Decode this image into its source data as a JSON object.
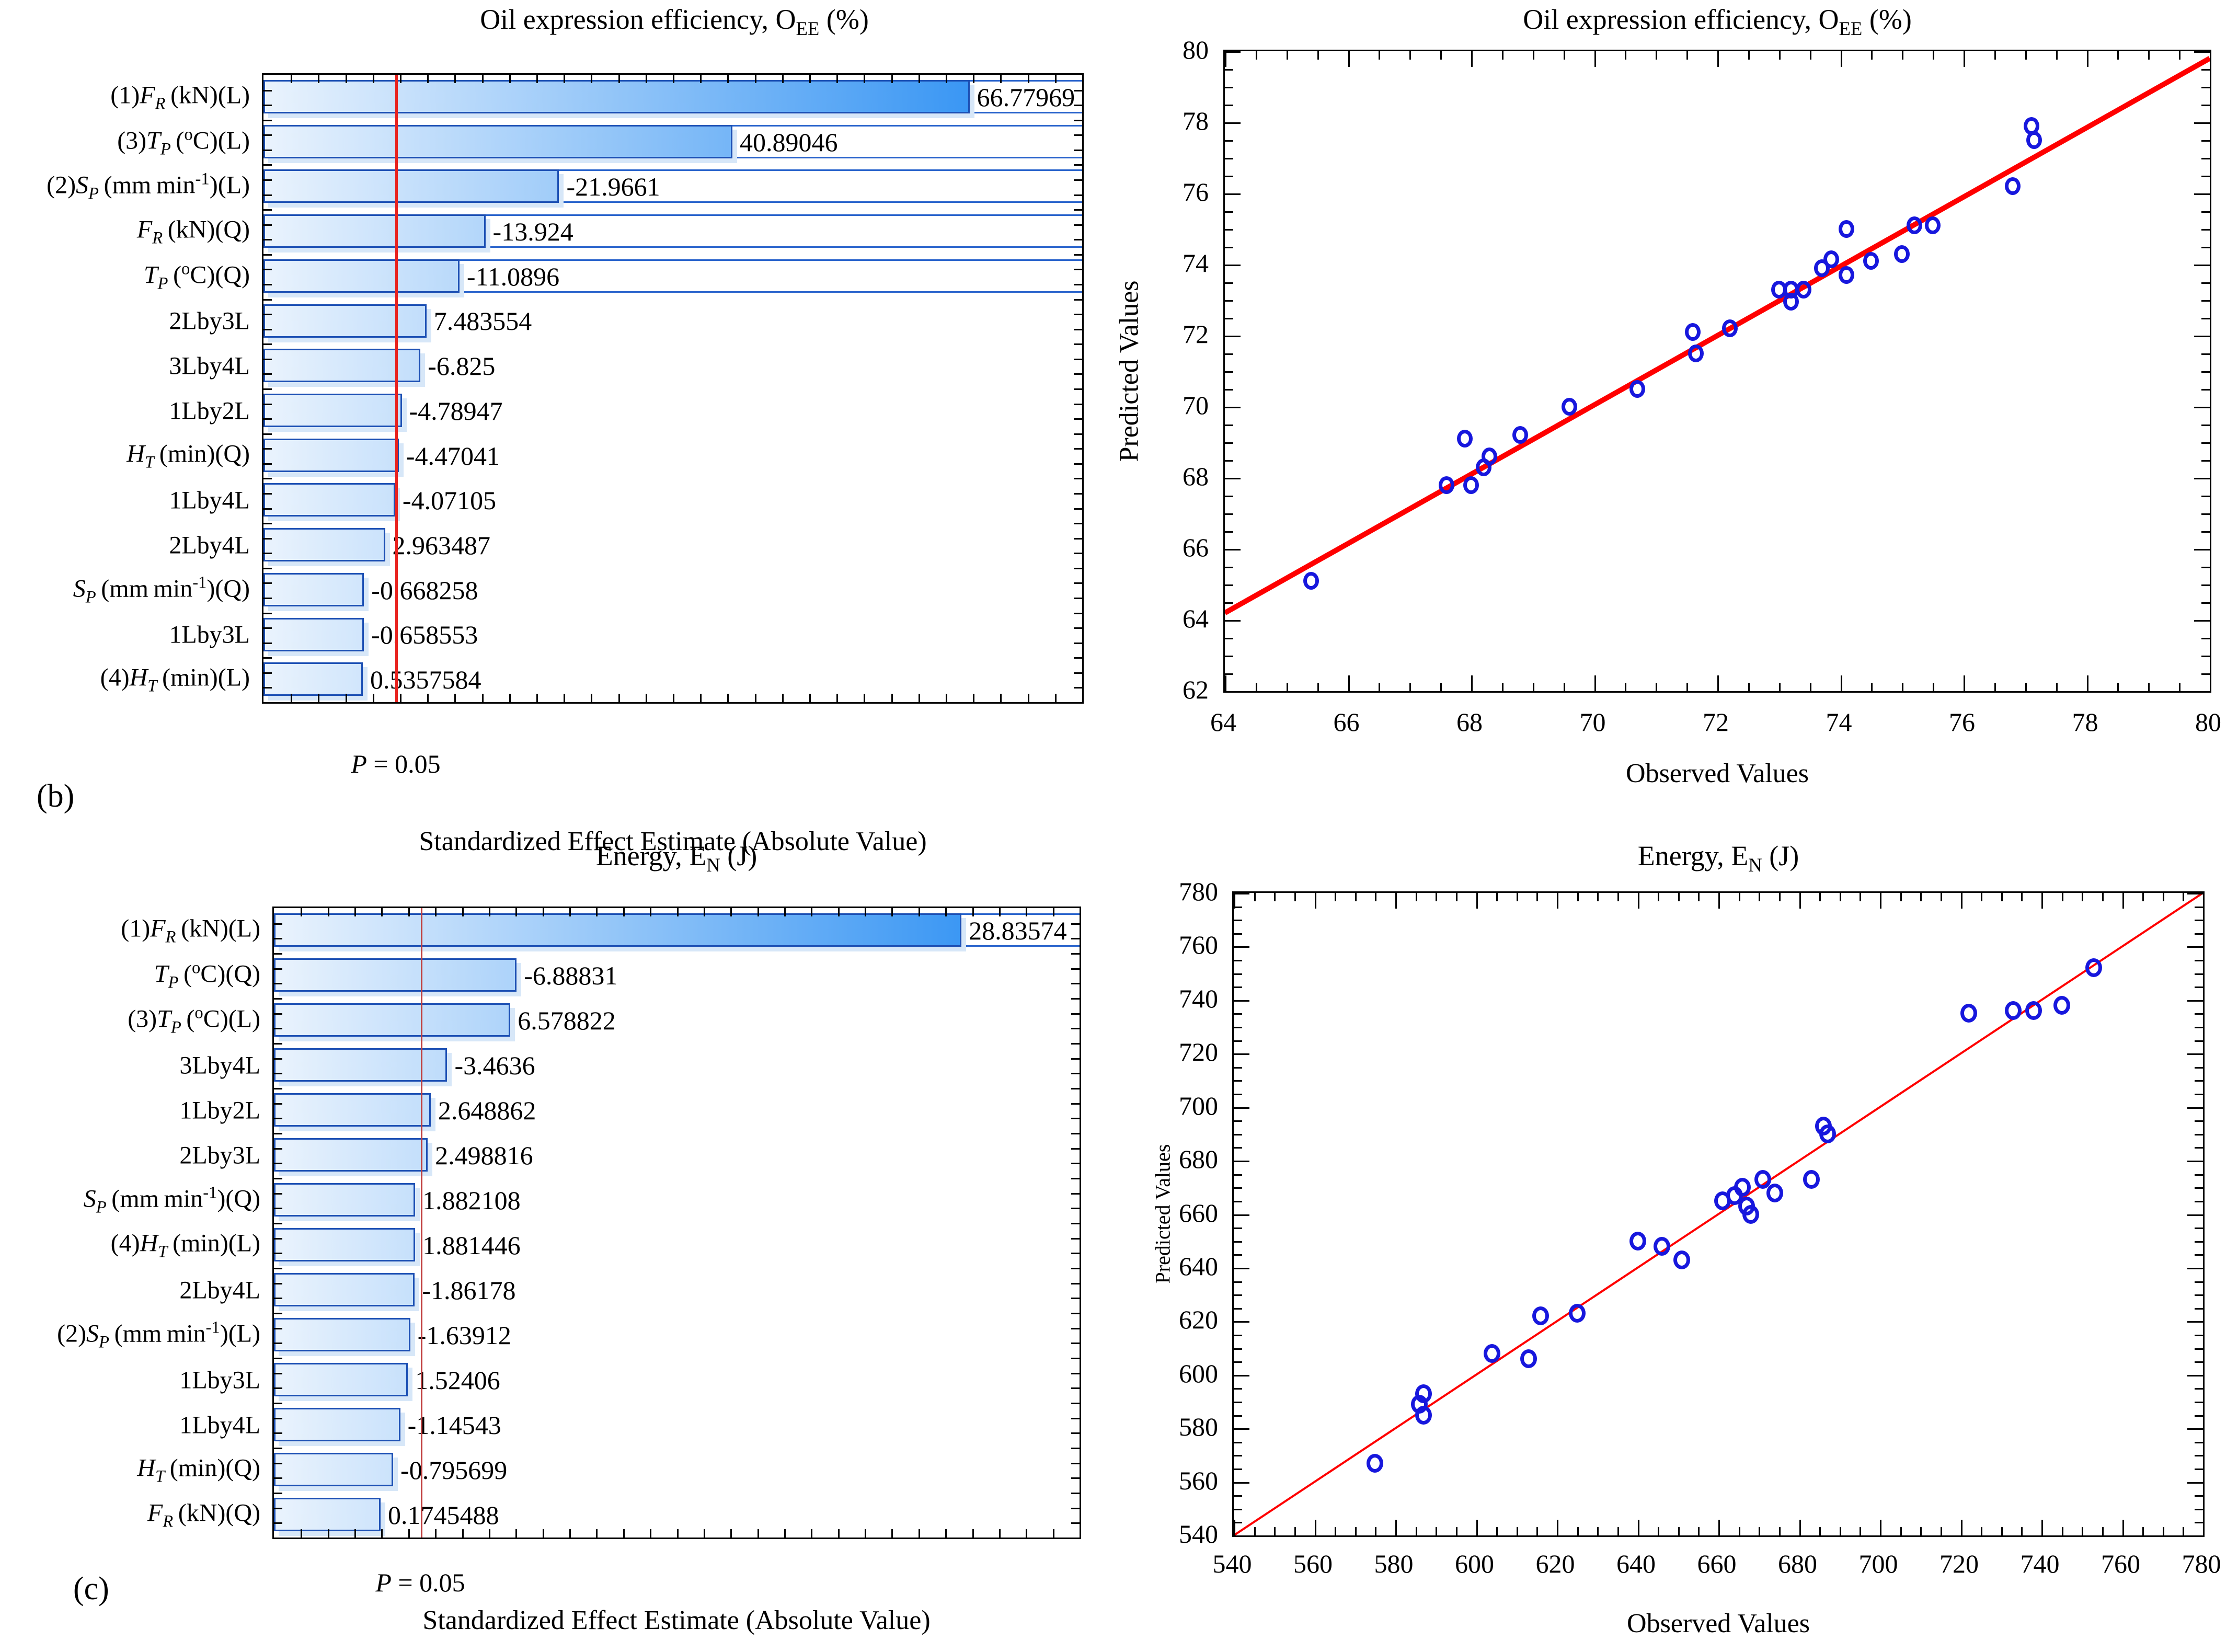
{
  "panels": {
    "b": "(b)",
    "c": "(c)"
  },
  "colors": {
    "bar_gradient_start": "#eaf3fd",
    "bar_gradient_end": "#1e88f2",
    "bar_border": "#1d50b4",
    "bar_shadow": "#d7e7f8",
    "row_line": "#2a64cc",
    "significance_line_b": "#e8231f",
    "significance_line_c": "#c04040",
    "fit_line": "#ff0000",
    "point_ring": "#1717dd"
  },
  "chart_data": [
    {
      "type": "bar",
      "panel": "b",
      "title_html": "Oil expression efficiency, O<sub>EE</sub> (%)",
      "xlabel": "Standardized Effect Estimate (Absolute Value)",
      "p_line_label_html": "<i>P</i> = 0.05",
      "p_line_value": 0.05,
      "categories_html": [
        "(1)<i>F<sub>R</sub></i>&thinsp;(kN)(L)",
        "(3)<i>T<sub>P</sub></i>&thinsp;(<sup>o</sup>C)(L)",
        "(2)<i>S<sub>P</sub></i>&thinsp;(mm&thinsp;min<sup>-1</sup>)(L)",
        "<i>F<sub>R</sub></i>&thinsp;(kN)(Q)",
        "<i>T<sub>P</sub></i>&thinsp;(<sup>o</sup>C)(Q)",
        "2Lby3L",
        "3Lby4L",
        "1Lby2L",
        "<i>H<sub>T</sub></i>&thinsp;(min)(Q)",
        "1Lby4L",
        "2Lby4L",
        "<i>S<sub>P</sub></i>&thinsp;(mm&thinsp;min<sup>-1</sup>)(Q)",
        "1Lby3L",
        "(4)<i>H<sub>T</sub></i>&thinsp;(min)(L)"
      ],
      "values": [
        66.77969,
        40.89046,
        -21.9661,
        -13.924,
        -11.0896,
        7.483554,
        -6.825,
        -4.78947,
        -4.47041,
        -4.07105,
        2.963487,
        -0.668258,
        -0.658553,
        0.5357584
      ],
      "value_labels": [
        "66.77969",
        "40.89046",
        "-21.9661",
        "-13.924",
        "-11.0896",
        "7.483554",
        "-6.825",
        "-4.78947",
        "-4.47041",
        "-4.07105",
        "2.963487",
        "-0.668258",
        "-0.658553",
        "0.5357584"
      ],
      "rows_with_full_lines": [
        0,
        1,
        2,
        3,
        4
      ]
    },
    {
      "type": "scatter",
      "panel": "b",
      "title_html": "Oil expression efficiency, O<sub>EE</sub> (%)",
      "xlabel": "Observed Values",
      "ylabel": "Predicted Values",
      "xlim": [
        64,
        80
      ],
      "ylim": [
        62,
        80
      ],
      "x_ticks": [
        64,
        66,
        68,
        70,
        72,
        74,
        76,
        78,
        80
      ],
      "y_ticks": [
        62,
        64,
        66,
        68,
        70,
        72,
        74,
        76,
        78,
        80
      ],
      "minor_step": 0.5,
      "grid": false,
      "points": [
        [
          65.4,
          65.1
        ],
        [
          67.6,
          67.8
        ],
        [
          67.9,
          69.1
        ],
        [
          68.0,
          67.8
        ],
        [
          68.2,
          68.3
        ],
        [
          68.3,
          68.6
        ],
        [
          68.8,
          69.2
        ],
        [
          69.6,
          70.0
        ],
        [
          70.7,
          70.5
        ],
        [
          71.6,
          72.1
        ],
        [
          71.65,
          71.5
        ],
        [
          72.2,
          72.2
        ],
        [
          73.0,
          73.3
        ],
        [
          73.2,
          73.3
        ],
        [
          73.2,
          72.95
        ],
        [
          73.4,
          73.3
        ],
        [
          73.7,
          73.9
        ],
        [
          73.85,
          74.15
        ],
        [
          74.1,
          75.0
        ],
        [
          74.1,
          73.7
        ],
        [
          74.5,
          74.1
        ],
        [
          75.0,
          74.3
        ],
        [
          75.2,
          75.1
        ],
        [
          75.5,
          75.1
        ],
        [
          76.8,
          76.2
        ],
        [
          77.1,
          77.9
        ],
        [
          77.15,
          77.5
        ]
      ],
      "fit_line": {
        "x1": 64,
        "y1": 64.2,
        "x2": 80,
        "y2": 79.8
      }
    },
    {
      "type": "bar",
      "panel": "c",
      "title_html": "Energy, E<sub>N</sub> (J)",
      "xlabel": "Standardized Effect Estimate (Absolute Value)",
      "p_line_label_html": "<i>P</i> = 0.05",
      "p_line_value": 0.05,
      "categories_html": [
        "(1)<i>F<sub>R</sub></i>&thinsp;(kN)(L)",
        "<i>T<sub>P</sub></i>&thinsp;(<sup>o</sup>C)(Q)",
        "(3)<i>T<sub>P</sub></i>&thinsp;(<sup>o</sup>C)(L)",
        "3Lby4L",
        "1Lby2L",
        "2Lby3L",
        "<i>S<sub>P</sub></i>&thinsp;(mm&thinsp;min<sup>-1</sup>)(Q)",
        "(4)<i>H<sub>T</sub></i>&thinsp;(min)(L)",
        "2Lby4L",
        "(2)<i>S<sub>P</sub></i>&thinsp;(mm&thinsp;min<sup>-1</sup>)(L)",
        "1Lby3L",
        "1Lby4L",
        "<i>H<sub>T</sub></i>&thinsp;(min)(Q)",
        "<i>F<sub>R</sub></i>&thinsp;(kN)(Q)"
      ],
      "values": [
        28.83574,
        -6.88831,
        6.578822,
        -3.4636,
        2.648862,
        2.498816,
        1.882108,
        1.881446,
        -1.86178,
        -1.63912,
        1.52406,
        -1.14543,
        -0.795699,
        0.1745488
      ],
      "value_labels": [
        "28.83574",
        "-6.88831",
        "6.578822",
        "-3.4636",
        "2.648862",
        "2.498816",
        "1.882108",
        "1.881446",
        "-1.86178",
        "-1.63912",
        "1.52406",
        "-1.14543",
        "-0.795699",
        "0.1745488"
      ],
      "rows_with_full_lines": [
        0
      ]
    },
    {
      "type": "scatter",
      "panel": "c",
      "title_html": "Energy, E<sub>N</sub> (J)",
      "xlabel": "Observed Values",
      "ylabel": "Predicted Values",
      "xlim": [
        540,
        780
      ],
      "ylim": [
        540,
        780
      ],
      "x_ticks": [
        540,
        560,
        580,
        600,
        620,
        640,
        660,
        680,
        700,
        720,
        740,
        760,
        780
      ],
      "y_ticks": [
        540,
        560,
        580,
        600,
        620,
        640,
        660,
        680,
        700,
        720,
        740,
        760,
        780
      ],
      "minor_step": 5,
      "grid": false,
      "points": [
        [
          575,
          567
        ],
        [
          586,
          589
        ],
        [
          587,
          585
        ],
        [
          587,
          593
        ],
        [
          604,
          608
        ],
        [
          613,
          606
        ],
        [
          616,
          622
        ],
        [
          625,
          623
        ],
        [
          640,
          650
        ],
        [
          646,
          648
        ],
        [
          651,
          643
        ],
        [
          661,
          665
        ],
        [
          664,
          667
        ],
        [
          666,
          670
        ],
        [
          667,
          663
        ],
        [
          668,
          660
        ],
        [
          671,
          673
        ],
        [
          674,
          668
        ],
        [
          683,
          673
        ],
        [
          686,
          693
        ],
        [
          687,
          690
        ],
        [
          722,
          735
        ],
        [
          733,
          736
        ],
        [
          738,
          736
        ],
        [
          745,
          738
        ],
        [
          753,
          752
        ]
      ],
      "fit_line": {
        "x1": 540,
        "y1": 540,
        "x2": 780,
        "y2": 780
      }
    }
  ]
}
